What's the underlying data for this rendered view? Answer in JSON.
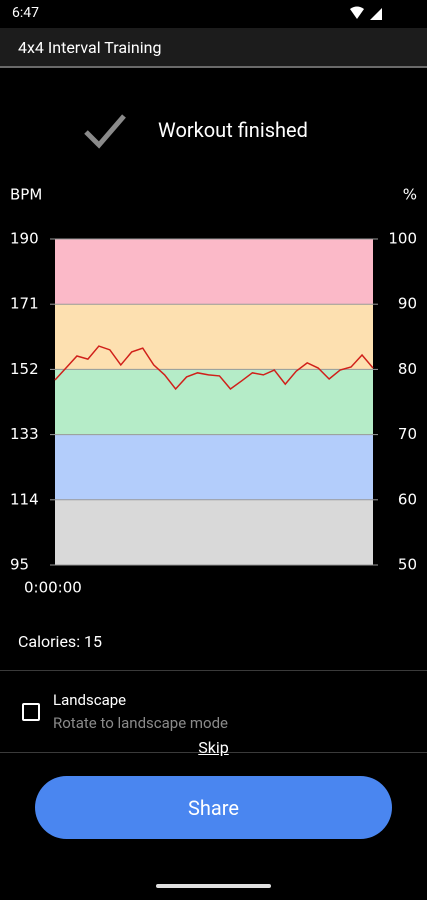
{
  "status_bar": {
    "time": "6:47"
  },
  "app_bar": {
    "title": "4x4 Interval Training"
  },
  "header": {
    "text": "Workout finished"
  },
  "chart_data": {
    "type": "line",
    "y_label": "BPM",
    "y2_label": "%",
    "x_start_label": "0:00:00",
    "color": "#d0201a",
    "values": [
      148.9,
      152.4,
      155.9,
      155.0,
      158.8,
      157.7,
      153.3,
      157.1,
      158.2,
      153.3,
      150.4,
      146.3,
      149.8,
      151.0,
      150.4,
      150.1,
      146.3,
      148.6,
      151.0,
      150.4,
      151.8,
      147.7,
      151.5,
      153.9,
      152.4,
      149.2,
      151.8,
      152.7,
      156.2,
      152.4
    ],
    "ylim": [
      95,
      190
    ],
    "yticks": [
      95,
      114,
      133,
      152,
      171,
      190
    ],
    "y2lim": [
      50,
      100
    ],
    "y2ticks": [
      50,
      60,
      70,
      80,
      90,
      100
    ],
    "zones": [
      {
        "from": 95,
        "to": 114,
        "color": "#d9d9d9"
      },
      {
        "from": 114,
        "to": 133,
        "color": "#b3cdfb"
      },
      {
        "from": 133,
        "to": 152,
        "color": "#b5ecc8"
      },
      {
        "from": 152,
        "to": 171,
        "color": "#fde0b0"
      },
      {
        "from": 171,
        "to": 190,
        "color": "#fbb9c8"
      }
    ],
    "grid": true
  },
  "calories": "Calories: 15",
  "option": {
    "title": "Landscape",
    "subtitle": "Rotate to landscape mode"
  },
  "skip": "Skip",
  "button": "Share"
}
